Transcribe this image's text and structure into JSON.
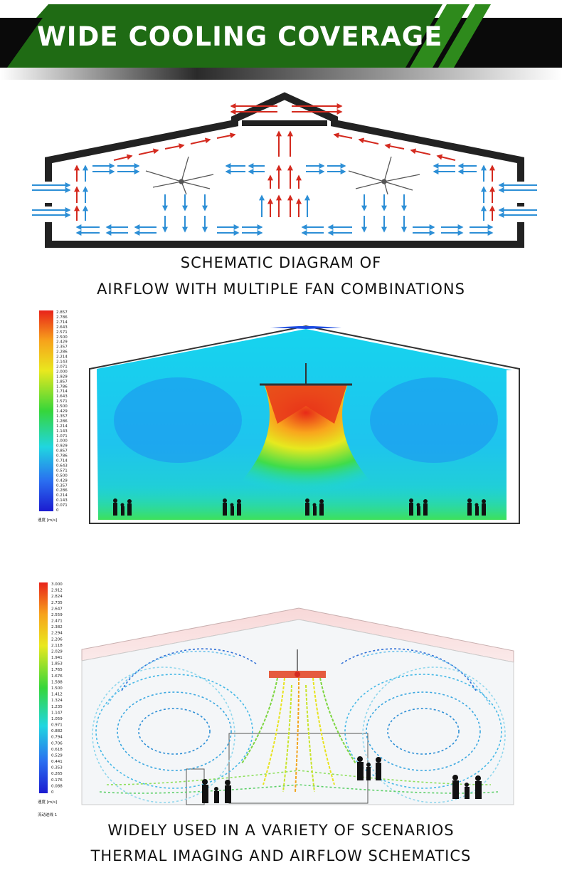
{
  "header": {
    "title": "WIDE COOLING COVERAGE"
  },
  "diagram": {
    "caption_line1": "SCHEMATIC DIAGRAM OF",
    "caption_line2": "AIRFLOW WITH MULTIPLE FAN COMBINATIONS"
  },
  "simulation_1": {
    "legend_values": [
      "2.857",
      "2.786",
      "2.714",
      "2.643",
      "2.571",
      "2.500",
      "2.429",
      "2.357",
      "2.286",
      "2.214",
      "2.143",
      "2.071",
      "2.000",
      "1.929",
      "1.857",
      "1.786",
      "1.714",
      "1.643",
      "1.571",
      "1.500",
      "1.429",
      "1.357",
      "1.286",
      "1.214",
      "1.143",
      "1.071",
      "1.000",
      "0.929",
      "0.857",
      "0.786",
      "0.714",
      "0.643",
      "0.571",
      "0.500",
      "0.429",
      "0.357",
      "0.286",
      "0.214",
      "0.143",
      "0.071",
      "0"
    ],
    "legend_unit": "速度 [m/s]"
  },
  "simulation_2": {
    "legend_values": [
      "3.000",
      "2.912",
      "2.824",
      "2.735",
      "2.647",
      "2.559",
      "2.471",
      "2.382",
      "2.294",
      "2.206",
      "2.118",
      "2.029",
      "1.941",
      "1.853",
      "1.765",
      "1.676",
      "1.588",
      "1.500",
      "1.412",
      "1.324",
      "1.235",
      "1.147",
      "1.059",
      "0.971",
      "0.882",
      "0.794",
      "0.706",
      "0.618",
      "0.529",
      "0.441",
      "0.353",
      "0.265",
      "0.176",
      "0.088",
      "0"
    ],
    "legend_unit": "速度 [m/s]",
    "legend_note": "流动迹线 1"
  },
  "footer": {
    "caption_line1": "WIDELY USED IN A VARIETY OF SCENARIOS",
    "caption_line2": "THERMAL IMAGING AND AIRFLOW SCHEMATICS"
  },
  "colors": {
    "banner_green": "#1f6b14",
    "banner_black": "#0a0a0a",
    "arrow_red": "#d42a1f",
    "arrow_blue": "#2d8fd6",
    "building_outline": "#222222"
  },
  "icons": [
    "ceiling-fan-icon",
    "people-silhouette-icon",
    "airflow-arrow-icon"
  ]
}
